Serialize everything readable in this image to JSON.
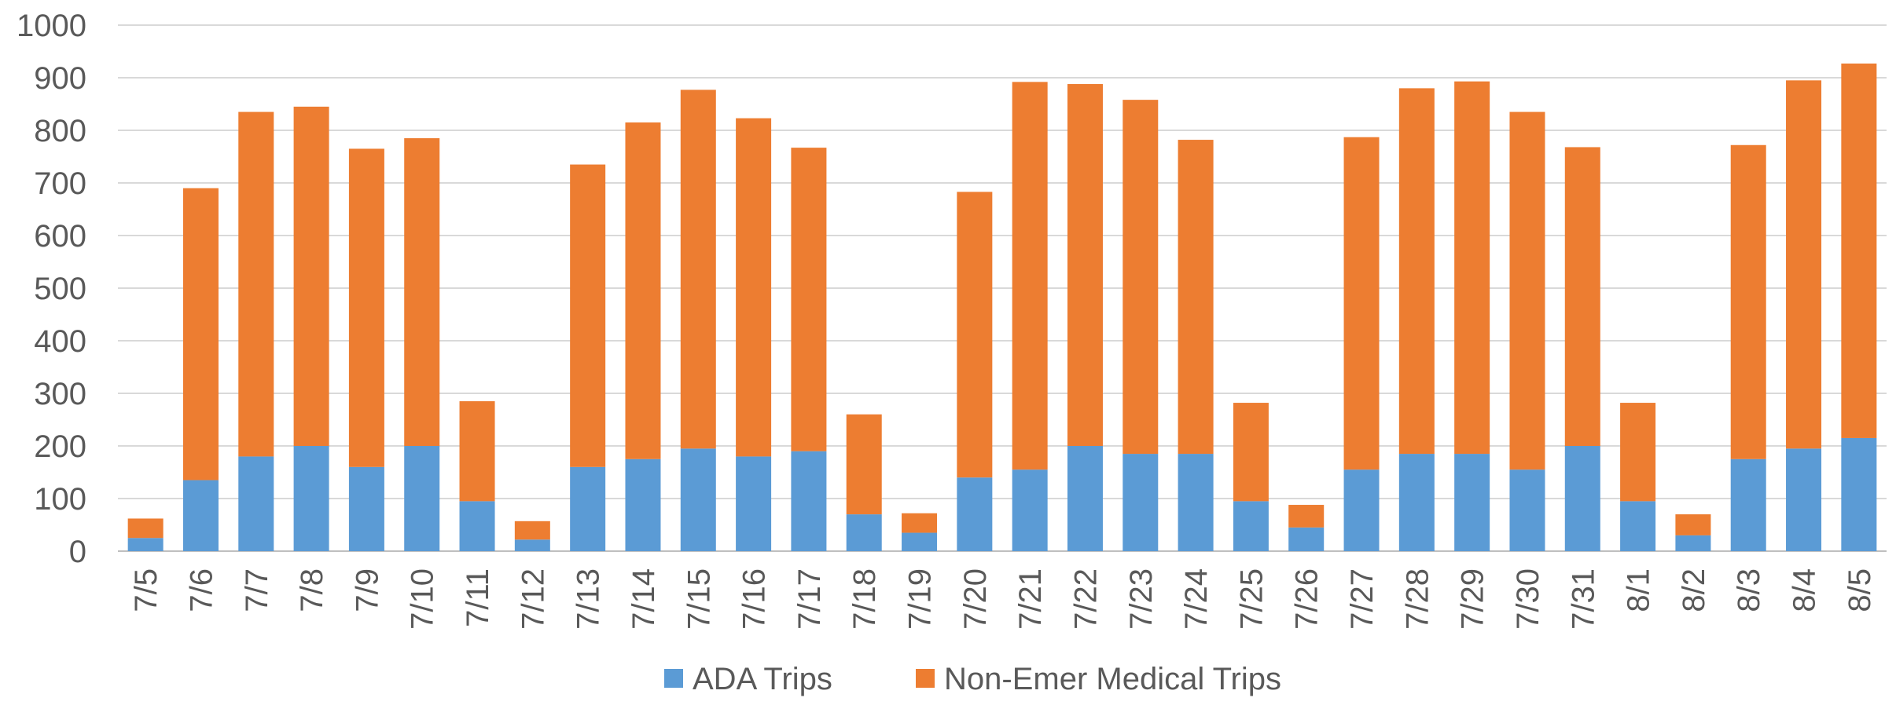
{
  "chart_data": {
    "type": "bar",
    "stacked": true,
    "categories": [
      "7/5",
      "7/6",
      "7/7",
      "7/8",
      "7/9",
      "7/10",
      "7/11",
      "7/12",
      "7/13",
      "7/14",
      "7/15",
      "7/16",
      "7/17",
      "7/18",
      "7/19",
      "7/20",
      "7/21",
      "7/22",
      "7/23",
      "7/24",
      "7/25",
      "7/26",
      "7/27",
      "7/28",
      "7/29",
      "7/30",
      "7/31",
      "8/1",
      "8/2",
      "8/3",
      "8/4",
      "8/5"
    ],
    "series": [
      {
        "name": "ADA Trips",
        "color": "#5B9BD5",
        "values": [
          25,
          135,
          180,
          200,
          160,
          200,
          95,
          22,
          160,
          175,
          195,
          180,
          190,
          70,
          35,
          140,
          155,
          200,
          185,
          185,
          95,
          45,
          155,
          185,
          185,
          155,
          200,
          95,
          30,
          175,
          195,
          215
        ]
      },
      {
        "name": "Non-Emer Medical Trips",
        "color": "#ED7D31",
        "values": [
          37,
          555,
          655,
          645,
          605,
          585,
          190,
          35,
          575,
          640,
          682,
          643,
          577,
          190,
          37,
          543,
          737,
          688,
          673,
          597,
          187,
          43,
          632,
          695,
          708,
          680,
          568,
          187,
          40,
          597,
          700,
          712
        ]
      }
    ],
    "ylim": [
      0,
      1000
    ],
    "yticks": [
      0,
      100,
      200,
      300,
      400,
      500,
      600,
      700,
      800,
      900,
      1000
    ],
    "grid": true,
    "legend": "bottom",
    "title": "",
    "xlabel": "",
    "ylabel": ""
  }
}
